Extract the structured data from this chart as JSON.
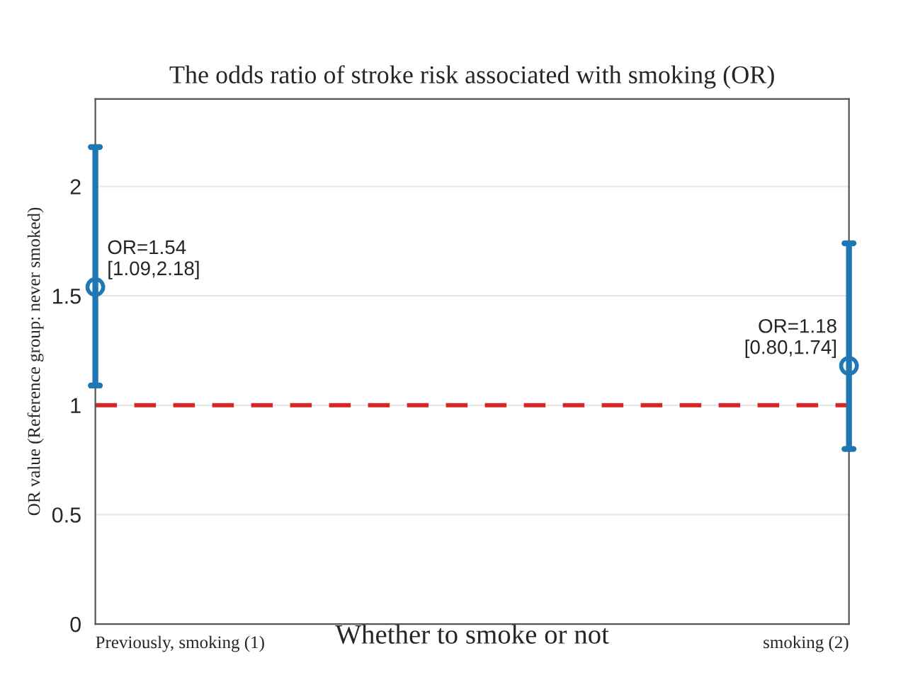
{
  "chart_data": {
    "type": "scatter",
    "title": "The odds ratio of stroke risk associated with smoking (OR)",
    "xlabel": "Whether to smoke or not",
    "ylabel": "OR value (Reference group: never smoked)",
    "categories": [
      "Previously, smoking (1)",
      "smoking (2)"
    ],
    "series": [
      {
        "color": "#1f77b4",
        "values": [
          1.54,
          1.18
        ],
        "errors": [
          [
            1.09,
            2.18
          ],
          [
            0.8,
            1.74
          ]
        ],
        "value_labels": [
          "OR=1.54\n[1.09,2.18]",
          "OR=1.18\n[0.80,1.74]"
        ]
      }
    ],
    "ylim": [
      0,
      2.4
    ],
    "yticks": [
      0,
      0.5,
      1,
      1.5,
      2
    ],
    "grid": "y",
    "marker": "circle",
    "ref_lines": [
      {
        "axis": "y",
        "value": 1,
        "color": "#d62728",
        "line_style": "dashed"
      }
    ]
  }
}
